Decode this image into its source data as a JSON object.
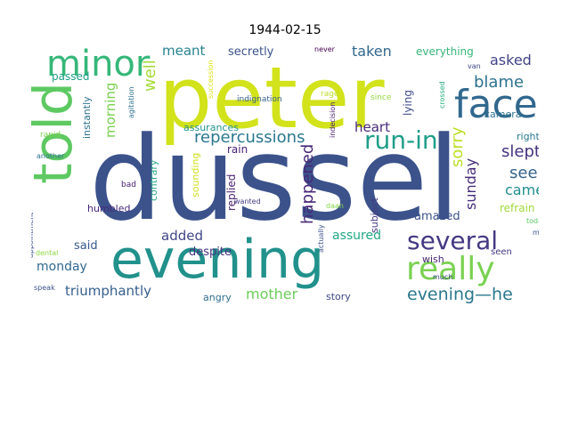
{
  "figure": {
    "title": "1944-02-15",
    "background": "#ffffff",
    "colormap": "viridis",
    "words": [
      {
        "text": "dussel",
        "color": "#3b528b"
      },
      {
        "text": "peter",
        "color": "#d2e21b"
      },
      {
        "text": "evening",
        "color": "#21918c"
      },
      {
        "text": "told",
        "color": "#5ec962"
      },
      {
        "text": "face",
        "color": "#31688e"
      },
      {
        "text": "really",
        "color": "#7ad151"
      },
      {
        "text": "minor",
        "color": "#35b779"
      },
      {
        "text": "several",
        "color": "#443983"
      },
      {
        "text": "run-in",
        "color": "#1f9e89"
      },
      {
        "text": "evening—he",
        "color": "#2a788e"
      },
      {
        "text": "repercussions",
        "color": "#2a788e"
      },
      {
        "text": "happened",
        "color": "#482878"
      },
      {
        "text": "blame",
        "color": "#2c728e"
      },
      {
        "text": "asked",
        "color": "#414487"
      },
      {
        "text": "sorry",
        "color": "#bddf26"
      },
      {
        "text": "slept",
        "color": "#46327e"
      },
      {
        "text": "see",
        "color": "#33638d"
      },
      {
        "text": "came",
        "color": "#218e8d"
      },
      {
        "text": "sunday",
        "color": "#472d7b"
      },
      {
        "text": "morning",
        "color": "#7ad151"
      },
      {
        "text": "well",
        "color": "#a5db36"
      },
      {
        "text": "meant",
        "color": "#26828e"
      },
      {
        "text": "taken",
        "color": "#31688e"
      },
      {
        "text": "secretly",
        "color": "#3b528b"
      },
      {
        "text": "everything",
        "color": "#35b779"
      },
      {
        "text": "heart",
        "color": "#482878"
      },
      {
        "text": "mother",
        "color": "#6ccd5a"
      },
      {
        "text": "triumphantly",
        "color": "#355f8d"
      },
      {
        "text": "monday",
        "color": "#31688e"
      },
      {
        "text": "added",
        "color": "#404688"
      },
      {
        "text": "assured",
        "color": "#22a785"
      },
      {
        "text": "said",
        "color": "#38598c"
      },
      {
        "text": "amazed",
        "color": "#3b528b"
      },
      {
        "text": "refrain",
        "color": "#a0da39"
      },
      {
        "text": "despite",
        "color": "#46337e"
      },
      {
        "text": "angry",
        "color": "#2e6e8e"
      },
      {
        "text": "story",
        "color": "#3e4989"
      },
      {
        "text": "contrary",
        "color": "#25ab82"
      },
      {
        "text": "humbled",
        "color": "#472a7a"
      },
      {
        "text": "instantly",
        "color": "#2c728e"
      },
      {
        "text": "passed",
        "color": "#1fa088"
      },
      {
        "text": "lying",
        "color": "#3e4a89"
      },
      {
        "text": "rain",
        "color": "#482173"
      },
      {
        "text": "sounding",
        "color": "#d0e11c"
      },
      {
        "text": "replied",
        "color": "#481f70"
      },
      {
        "text": "subject",
        "color": "#443983"
      },
      {
        "text": "right",
        "color": "#2a788e"
      },
      {
        "text": "camera",
        "color": "#2c728e"
      },
      {
        "text": "wish",
        "color": "#482475"
      },
      {
        "text": "seen",
        "color": "#453781"
      },
      {
        "text": "assurances",
        "color": "#20928c"
      },
      {
        "text": "indignation",
        "color": "#355f8d"
      },
      {
        "text": "rage",
        "color": "#bddf26"
      },
      {
        "text": "since",
        "color": "#95d840"
      },
      {
        "text": "indecision",
        "color": "#481c6e"
      },
      {
        "text": "crossed",
        "color": "#2ab07f"
      },
      {
        "text": "van",
        "color": "#3e4989"
      },
      {
        "text": "never",
        "color": "#440154"
      },
      {
        "text": "succession",
        "color": "#dde318"
      },
      {
        "text": "agitation",
        "color": "#2c728e"
      },
      {
        "text": "rapid",
        "color": "#7ad151"
      },
      {
        "text": "another",
        "color": "#2c728e"
      },
      {
        "text": "bad",
        "color": "#482173"
      },
      {
        "text": "appointment",
        "color": "#3b528b"
      },
      {
        "text": "wanted",
        "color": "#443983"
      },
      {
        "text": "daan",
        "color": "#86d549"
      },
      {
        "text": "actually",
        "color": "#3b528b"
      },
      {
        "text": "much",
        "color": "#3e4989"
      },
      {
        "text": "mr.",
        "color": "#3b528b"
      },
      {
        "text": "today",
        "color": "#5ec962"
      },
      {
        "text": "dental",
        "color": "#8fd744"
      },
      {
        "text": "speak",
        "color": "#3b528b"
      }
    ]
  }
}
